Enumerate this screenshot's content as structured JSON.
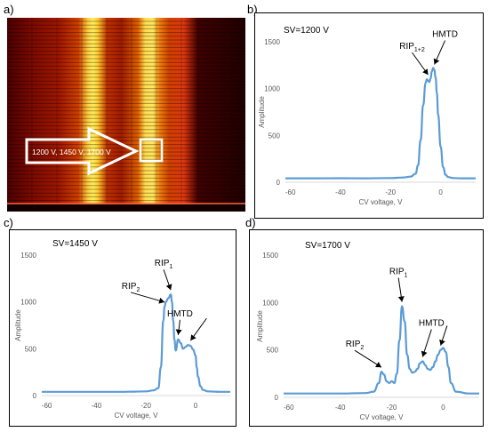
{
  "panels": {
    "a": {
      "letter": "a)",
      "arrow_label": "1200 V, 1450 V, 1700 V"
    }
  },
  "colors": {
    "line": "#5b9bd5",
    "axis_text": "#595959",
    "heat_dark": "#1a0000",
    "heat_hot": "#ffee55"
  },
  "chart_data": [
    {
      "panel": "b)",
      "type": "line",
      "title": "SV=1200  V",
      "xlabel": "CV voltage, V",
      "ylabel": "Amplitude",
      "xlim": [
        -62,
        14
      ],
      "ylim": [
        0,
        1500
      ],
      "xticks": [
        -60,
        -40,
        -20,
        0
      ],
      "yticks": [
        0,
        500,
        1000,
        1500
      ],
      "x": [
        -62,
        -50,
        -40,
        -30,
        -20,
        -15,
        -12,
        -10,
        -9,
        -8,
        -7,
        -6,
        -5.5,
        -5,
        -4.5,
        -4,
        -3.5,
        -3,
        -2.5,
        -2,
        -1.5,
        -1,
        0,
        1,
        2,
        3,
        5,
        8,
        10,
        14
      ],
      "y": [
        42,
        42,
        43,
        42,
        45,
        50,
        60,
        90,
        180,
        450,
        820,
        1060,
        1100,
        1085,
        1070,
        1110,
        1180,
        1220,
        1200,
        1120,
        950,
        720,
        380,
        160,
        80,
        55,
        45,
        42,
        42,
        42
      ],
      "annotations": [
        {
          "text": "RIP",
          "sub": "1+2",
          "x": -5,
          "y": 1100
        },
        {
          "text": "HMTD",
          "x": -2.5,
          "y": 1210
        }
      ]
    },
    {
      "panel": "c)",
      "type": "line",
      "title": "SV=1450  V",
      "xlabel": "CV voltage, V",
      "ylabel": "Amplitude",
      "xlim": [
        -62,
        14
      ],
      "ylim": [
        0,
        1500
      ],
      "xticks": [
        -60,
        -40,
        -20,
        0
      ],
      "yticks": [
        0,
        500,
        1000,
        1500
      ],
      "x": [
        -62,
        -50,
        -40,
        -30,
        -25,
        -20,
        -17,
        -15,
        -14,
        -13,
        -12.5,
        -12,
        -11,
        -10,
        -9.5,
        -9,
        -8.5,
        -8,
        -7,
        -6,
        -5,
        -4,
        -3,
        -2,
        -1,
        0,
        0.5,
        1,
        2,
        3,
        5,
        10,
        14
      ],
      "y": [
        40,
        40,
        40,
        40,
        42,
        45,
        55,
        80,
        300,
        800,
        950,
        1000,
        1040,
        1080,
        1000,
        800,
        600,
        480,
        600,
        560,
        500,
        520,
        540,
        530,
        490,
        430,
        300,
        200,
        100,
        60,
        45,
        40,
        40
      ],
      "annotations": [
        {
          "text": "RIP",
          "sub": "2",
          "x": -12.5,
          "y": 950
        },
        {
          "text": "RIP",
          "sub": "1",
          "x": -10,
          "y": 1080
        },
        {
          "text": "HMTD",
          "x": -7,
          "y": 600
        },
        {
          "text": "",
          "x": -2,
          "y": 540
        }
      ]
    },
    {
      "panel": "d)",
      "type": "line",
      "title": "SV=1700  V",
      "xlabel": "CV voltage, V",
      "ylabel": "Amplitude",
      "xlim": [
        -62,
        14
      ],
      "ylim": [
        0,
        1500
      ],
      "xticks": [
        -60,
        -40,
        -20,
        0
      ],
      "yticks": [
        0,
        500,
        1000,
        1500
      ],
      "x": [
        -62,
        -50,
        -40,
        -30,
        -27,
        -25,
        -24,
        -23,
        -22,
        -21,
        -20,
        -19,
        -18,
        -17,
        -16,
        -15,
        -14,
        -13,
        -12,
        -11,
        -10,
        -9,
        -8,
        -7,
        -6,
        -5,
        -4,
        -3,
        -2,
        -1,
        0,
        1,
        2,
        3,
        5,
        10,
        14
      ],
      "y": [
        40,
        40,
        40,
        45,
        60,
        150,
        270,
        240,
        170,
        150,
        170,
        150,
        250,
        600,
        960,
        800,
        450,
        300,
        260,
        270,
        300,
        360,
        380,
        340,
        300,
        290,
        320,
        380,
        450,
        500,
        520,
        480,
        320,
        150,
        60,
        40,
        40
      ],
      "annotations": [
        {
          "text": "RIP",
          "sub": "2",
          "x": -24,
          "y": 270
        },
        {
          "text": "RIP",
          "sub": "1",
          "x": -16,
          "y": 960
        },
        {
          "text": "HMTD",
          "x": -8,
          "y": 380
        },
        {
          "text": "",
          "x": -1,
          "y": 500
        }
      ]
    }
  ]
}
